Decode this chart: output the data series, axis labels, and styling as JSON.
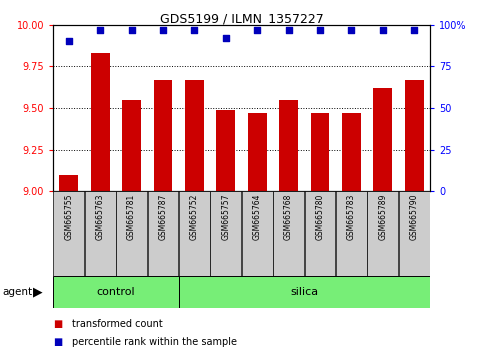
{
  "title": "GDS5199 / ILMN_1357227",
  "samples": [
    "GSM665755",
    "GSM665763",
    "GSM665781",
    "GSM665787",
    "GSM665752",
    "GSM665757",
    "GSM665764",
    "GSM665768",
    "GSM665780",
    "GSM665783",
    "GSM665789",
    "GSM665790"
  ],
  "groups": [
    "control",
    "control",
    "control",
    "control",
    "silica",
    "silica",
    "silica",
    "silica",
    "silica",
    "silica",
    "silica",
    "silica"
  ],
  "transformed_count": [
    9.1,
    9.83,
    9.55,
    9.67,
    9.67,
    9.49,
    9.47,
    9.55,
    9.47,
    9.47,
    9.62,
    9.67
  ],
  "percentile_rank": [
    90,
    97,
    97,
    97,
    97,
    92,
    97,
    97,
    97,
    97,
    97,
    97
  ],
  "ylim_left": [
    9.0,
    10.0
  ],
  "ylim_right": [
    0,
    100
  ],
  "yticks_left": [
    9.0,
    9.25,
    9.5,
    9.75,
    10.0
  ],
  "yticks_right": [
    0,
    25,
    50,
    75,
    100
  ],
  "bar_color": "#cc0000",
  "dot_color": "#0000bb",
  "control_color": "#77ee77",
  "silica_color": "#77ee77",
  "bg_color": "#cccccc",
  "legend_red_label": "transformed count",
  "legend_blue_label": "percentile rank within the sample",
  "agent_label": "agent",
  "n_control": 4,
  "n_silica": 8
}
